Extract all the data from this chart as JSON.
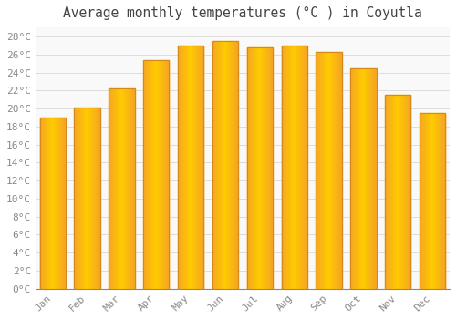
{
  "title": "Average monthly temperatures (°C ) in Coyutla",
  "months": [
    "Jan",
    "Feb",
    "Mar",
    "Apr",
    "May",
    "Jun",
    "Jul",
    "Aug",
    "Sep",
    "Oct",
    "Nov",
    "Dec"
  ],
  "values": [
    19.0,
    20.1,
    22.2,
    25.4,
    27.0,
    27.5,
    26.8,
    27.0,
    26.3,
    24.5,
    21.5,
    19.5
  ],
  "bar_color_center": "#FFCC00",
  "bar_color_edge": "#F5A623",
  "background_color": "#FFFFFF",
  "plot_bg_color": "#F9F9F9",
  "grid_color": "#DDDDDD",
  "ylim": [
    0,
    29
  ],
  "ytick_step": 2,
  "title_fontsize": 10.5,
  "tick_fontsize": 8,
  "tick_color": "#888888",
  "title_color": "#444444",
  "font_family": "monospace",
  "bar_width": 0.75
}
